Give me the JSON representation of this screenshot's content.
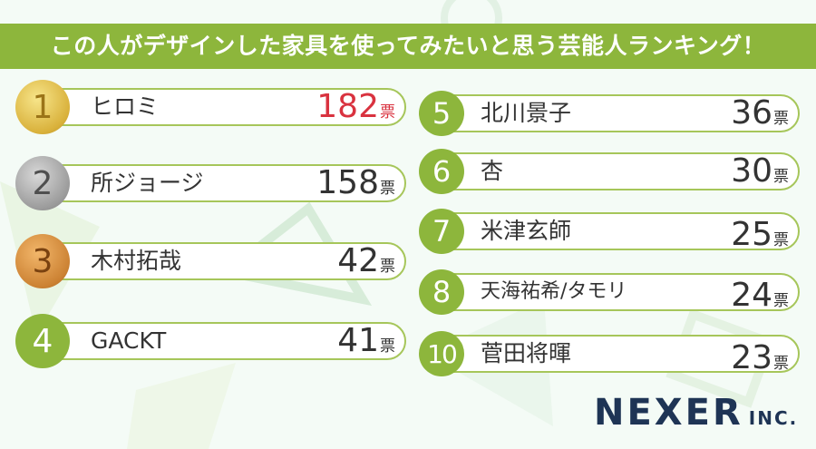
{
  "title": "この人がデザインした家具を使ってみたいと思う芸能人ランキング！",
  "unit": "票",
  "ranking": [
    {
      "rank": "1",
      "name": "ヒロミ",
      "votes": "182"
    },
    {
      "rank": "2",
      "name": "所ジョージ",
      "votes": "158"
    },
    {
      "rank": "3",
      "name": "木村拓哉",
      "votes": "42"
    },
    {
      "rank": "4",
      "name": "GACKT",
      "votes": "41"
    },
    {
      "rank": "5",
      "name": "北川景子",
      "votes": "36"
    },
    {
      "rank": "6",
      "name": "杏",
      "votes": "30"
    },
    {
      "rank": "7",
      "name": "米津玄師",
      "votes": "25"
    },
    {
      "rank": "8",
      "name": "天海祐希/タモリ",
      "votes": "24"
    },
    {
      "rank": "10",
      "name": "菅田将暉",
      "votes": "23"
    }
  ],
  "logo": {
    "main": "NEXER",
    "sub": "INC."
  },
  "colors": {
    "accent": "#8db63c",
    "highlight": "#d9323f",
    "logo": "#1e3455"
  }
}
